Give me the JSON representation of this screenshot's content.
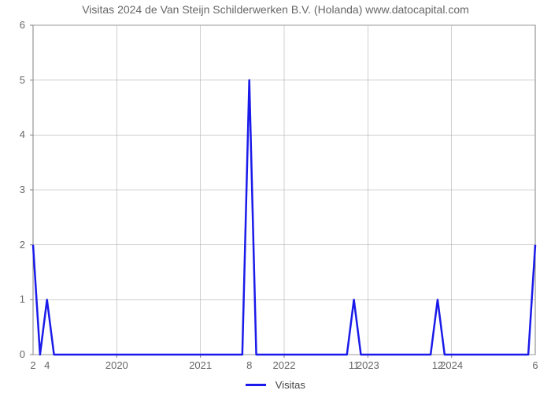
{
  "title": "Visitas 2024 de Van Steijn Schilderwerken B.V. (Holanda) www.datocapital.com",
  "chart": {
    "type": "line",
    "background_color": "#ffffff",
    "series_color": "#1a1aea",
    "series_label": "Visitas",
    "line_width": 2.5,
    "axis_color": "#808080",
    "grid_color": "#b0b0b0",
    "grid_width": 0.6,
    "title_color": "#666666",
    "label_color": "#666666",
    "title_fontsize": 14,
    "label_fontsize": 13,
    "x_domain_min": 0,
    "x_domain_max": 72,
    "y_domain_min": 0,
    "y_domain_max": 6,
    "yticks": [
      0,
      1,
      2,
      3,
      4,
      5,
      6
    ],
    "x_year_ticks": [
      {
        "x": 12,
        "label": "2020"
      },
      {
        "x": 24,
        "label": "2021"
      },
      {
        "x": 36,
        "label": "2022"
      },
      {
        "x": 48,
        "label": "2023"
      },
      {
        "x": 60,
        "label": "2024"
      }
    ],
    "callouts": [
      {
        "x": 0,
        "label": "2"
      },
      {
        "x": 2,
        "label": "4"
      },
      {
        "x": 31,
        "label": "8"
      },
      {
        "x": 46,
        "label": "11"
      },
      {
        "x": 58,
        "label": "12"
      },
      {
        "x": 72,
        "label": "6"
      }
    ],
    "values": [
      2,
      0,
      1,
      0,
      0,
      0,
      0,
      0,
      0,
      0,
      0,
      0,
      0,
      0,
      0,
      0,
      0,
      0,
      0,
      0,
      0,
      0,
      0,
      0,
      0,
      0,
      0,
      0,
      0,
      0,
      0,
      5,
      0,
      0,
      0,
      0,
      0,
      0,
      0,
      0,
      0,
      0,
      0,
      0,
      0,
      0,
      1,
      0,
      0,
      0,
      0,
      0,
      0,
      0,
      0,
      0,
      0,
      0,
      1,
      0,
      0,
      0,
      0,
      0,
      0,
      0,
      0,
      0,
      0,
      0,
      0,
      0,
      2
    ]
  }
}
